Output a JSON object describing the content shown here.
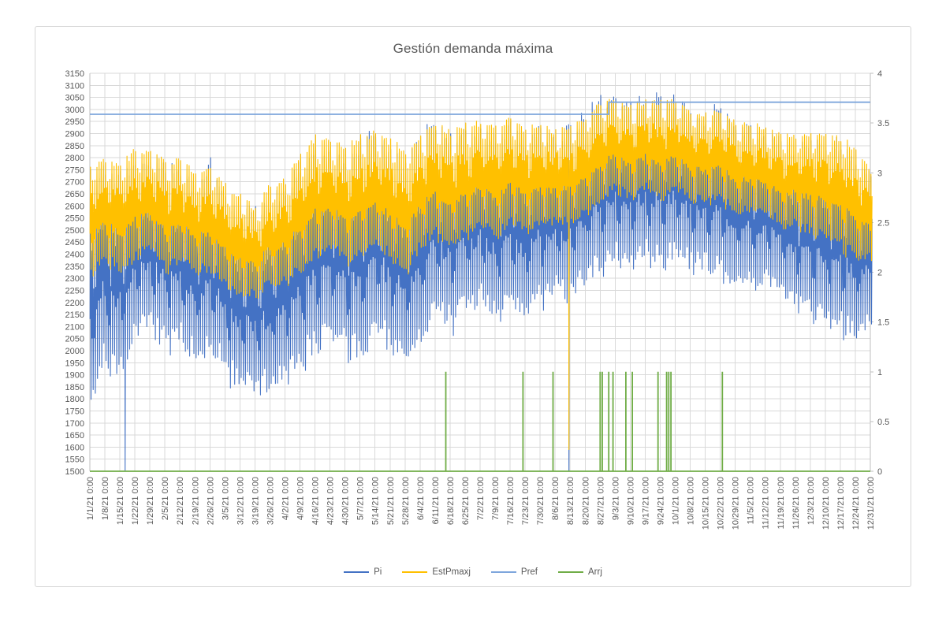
{
  "page": {
    "background": "#FFFFFF"
  },
  "chart_data": {
    "type": "line",
    "title": "Gestión demanda máxima",
    "grid": true,
    "legend_position": "bottom",
    "colors": {
      "grid": "#D9D9D9",
      "axis_line": "#BFBFBF",
      "text": "#595959",
      "pi": "#4472C4",
      "estpmaxj": "#FFC000",
      "pref": "#7EA6DC",
      "arrj": "#70AD47"
    },
    "axes": {
      "y_left": {
        "min": 1500,
        "max": 3150,
        "step": 50
      },
      "y_right": {
        "min": 0,
        "max": 4,
        "step": 0.5
      },
      "x": {
        "unit": "weekly dates, year 2021, hourly data",
        "tick_labels": [
          "1/1/21 0:00",
          "1/8/21 0:00",
          "1/15/21 0:00",
          "1/22/21 0:00",
          "1/29/21 0:00",
          "2/5/21 0:00",
          "2/12/21 0:00",
          "2/19/21 0:00",
          "2/26/21 0:00",
          "3/5/21 0:00",
          "3/12/21 0:00",
          "3/19/21 0:00",
          "3/26/21 0:00",
          "4/2/21 0:00",
          "4/9/21 0:00",
          "4/16/21 0:00",
          "4/23/21 0:00",
          "4/30/21 0:00",
          "5/7/21 0:00",
          "5/14/21 0:00",
          "5/21/21 0:00",
          "5/28/21 0:00",
          "6/4/21 0:00",
          "6/11/21 0:00",
          "6/18/21 0:00",
          "6/25/21 0:00",
          "7/2/21 0:00",
          "7/9/21 0:00",
          "7/16/21 0:00",
          "7/23/21 0:00",
          "7/30/21 0:00",
          "8/6/21 0:00",
          "8/13/21 0:00",
          "8/20/21 0:00",
          "8/27/21 0:00",
          "9/3/21 0:00",
          "9/10/21 0:00",
          "9/17/21 0:00",
          "9/24/21 0:00",
          "10/1/21 0:00",
          "10/8/21 0:00",
          "10/15/21 0:00",
          "10/22/21 0:00",
          "10/29/21 0:00",
          "11/5/21 0:00",
          "11/12/21 0:00",
          "11/19/21 0:00",
          "11/26/21 0:00",
          "12/3/21 0:00",
          "12/10/21 0:00",
          "12/17/21 0:00",
          "12/24/21 0:00",
          "12/31/21 0:00"
        ]
      }
    },
    "legend": [
      {
        "label": "Pi",
        "color": "#4472C4"
      },
      {
        "label": "EstPmaxj",
        "color": "#FFC000"
      },
      {
        "label": "Pref",
        "color": "#7EA6DC"
      },
      {
        "label": "Arrj",
        "color": "#70AD47"
      }
    ],
    "series": [
      {
        "name": "Pi",
        "axis": "left",
        "color": "#4472C4",
        "style": "dense-hourly-line",
        "weekly_envelope_low": [
          1750,
          1900,
          1850,
          2000,
          2050,
          1950,
          2000,
          1900,
          1950,
          1850,
          1800,
          1780,
          1800,
          1850,
          1900,
          1950,
          2000,
          1950,
          1900,
          2000,
          1950,
          1900,
          2000,
          2100,
          2050,
          2100,
          2150,
          2100,
          2150,
          2100,
          2150,
          2200,
          2150,
          2250,
          2300,
          2350,
          2300,
          2350,
          2300,
          2350,
          2300,
          2300,
          2250,
          2250,
          2200,
          2250,
          2200,
          2150,
          2100,
          2100,
          2050,
          2000,
          2050
        ],
        "weekly_envelope_high": [
          2750,
          2800,
          2750,
          2830,
          2800,
          2800,
          2780,
          2700,
          2820,
          2650,
          2600,
          2620,
          2650,
          2700,
          2800,
          2880,
          2850,
          2800,
          2880,
          2950,
          2850,
          2800,
          2900,
          2990,
          2900,
          2950,
          2950,
          2920,
          2960,
          2900,
          2950,
          2900,
          2950,
          3000,
          3070,
          3060,
          3060,
          3050,
          3080,
          3070,
          3000,
          2980,
          3060,
          2950,
          2950,
          2900,
          2900,
          2850,
          2900,
          2850,
          2900,
          2800,
          2750
        ],
        "events": [
          {
            "day": 16,
            "date": "1/17/21",
            "drop_to": 1500
          },
          {
            "day": 223,
            "date": "8/12/21",
            "drop_to": 1500
          }
        ]
      },
      {
        "name": "EstPmaxj",
        "axis": "left",
        "color": "#FFC000",
        "style": "dense-hourly-line",
        "weekly_envelope_low": [
          2300,
          2350,
          2300,
          2350,
          2400,
          2300,
          2350,
          2300,
          2300,
          2250,
          2200,
          2200,
          2250,
          2250,
          2300,
          2350,
          2400,
          2350,
          2350,
          2400,
          2350,
          2300,
          2400,
          2450,
          2400,
          2450,
          2500,
          2450,
          2500,
          2450,
          2500,
          2500,
          2500,
          2550,
          2600,
          2650,
          2600,
          2650,
          2600,
          2650,
          2600,
          2600,
          2600,
          2550,
          2550,
          2550,
          2500,
          2500,
          2450,
          2450,
          2400,
          2350,
          2350
        ],
        "weekly_envelope_high": [
          2780,
          2800,
          2780,
          2850,
          2830,
          2800,
          2800,
          2750,
          2780,
          2700,
          2650,
          2600,
          2700,
          2720,
          2820,
          2900,
          2880,
          2850,
          2900,
          2920,
          2880,
          2850,
          2900,
          2950,
          2920,
          2950,
          2960,
          2950,
          2970,
          2930,
          2950,
          2920,
          2950,
          2980,
          3040,
          3050,
          3030,
          3040,
          3050,
          3040,
          3000,
          2990,
          3000,
          2960,
          2950,
          2930,
          2900,
          2900,
          2920,
          2900,
          2900,
          2850,
          2750
        ],
        "events": [
          {
            "day": 223,
            "date": "8/12/21",
            "drop_to": 1590
          }
        ]
      },
      {
        "name": "Pref",
        "axis": "left",
        "color": "#7EA6DC",
        "style": "step-line",
        "segments": [
          {
            "from_day": 0,
            "to_day": 242,
            "from_date": "1/1/21",
            "to_date": "8/31/21",
            "value": 2980
          },
          {
            "from_day": 242,
            "to_day": 364,
            "from_date": "8/31/21",
            "to_date": "12/31/21",
            "value": 3030
          }
        ]
      },
      {
        "name": "Arrj",
        "axis": "right",
        "color": "#70AD47",
        "style": "spikes",
        "baseline_value": 0,
        "spike_value": 1,
        "spike_days": [
          166,
          202,
          216,
          238,
          239,
          242,
          244,
          250,
          253,
          265,
          269,
          270,
          271,
          295
        ],
        "spike_dates": [
          "6/16/21",
          "7/22/21",
          "8/5/21",
          "8/27/21",
          "8/28/21",
          "8/31/21",
          "9/2/21",
          "9/8/21",
          "9/11/21",
          "9/23/21",
          "9/27/21",
          "9/28/21",
          "9/29/21",
          "10/23/21"
        ]
      }
    ]
  }
}
